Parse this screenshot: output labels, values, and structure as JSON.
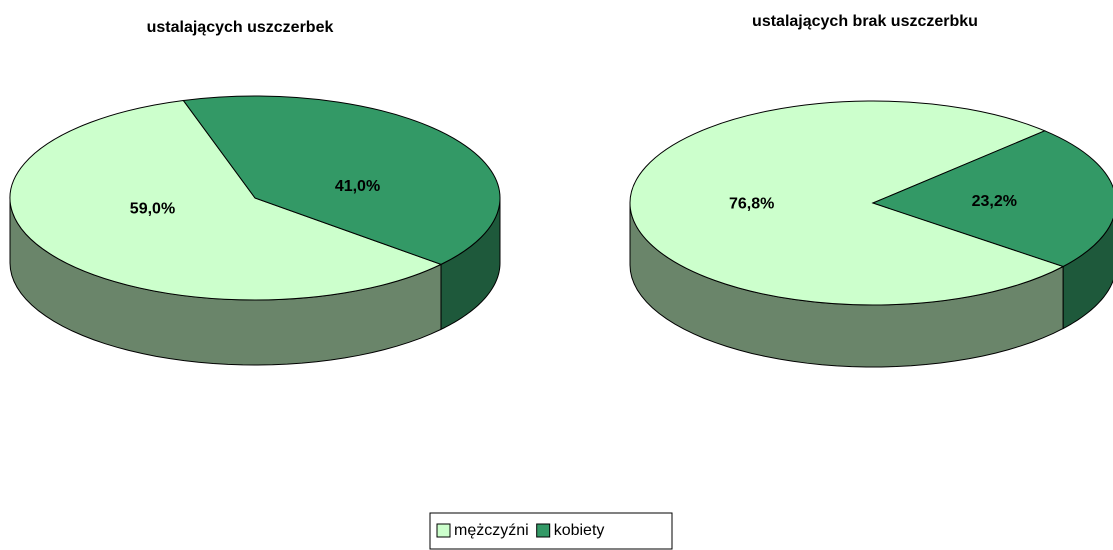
{
  "legend": {
    "entries": [
      "mężczyźni",
      "kobiety"
    ],
    "colors": [
      "#ccffcc",
      "#339966"
    ]
  },
  "chart_data": [
    {
      "type": "pie3d",
      "title": "ustalających uszczerbek",
      "values": [
        59.0,
        41.0
      ],
      "value_labels": [
        "59,0%",
        "41,0%"
      ]
    },
    {
      "type": "pie3d",
      "title": "ustalających brak uszczerbku",
      "values": [
        76.8,
        23.2
      ],
      "value_labels": [
        "76,8%",
        "23,2%"
      ]
    }
  ]
}
